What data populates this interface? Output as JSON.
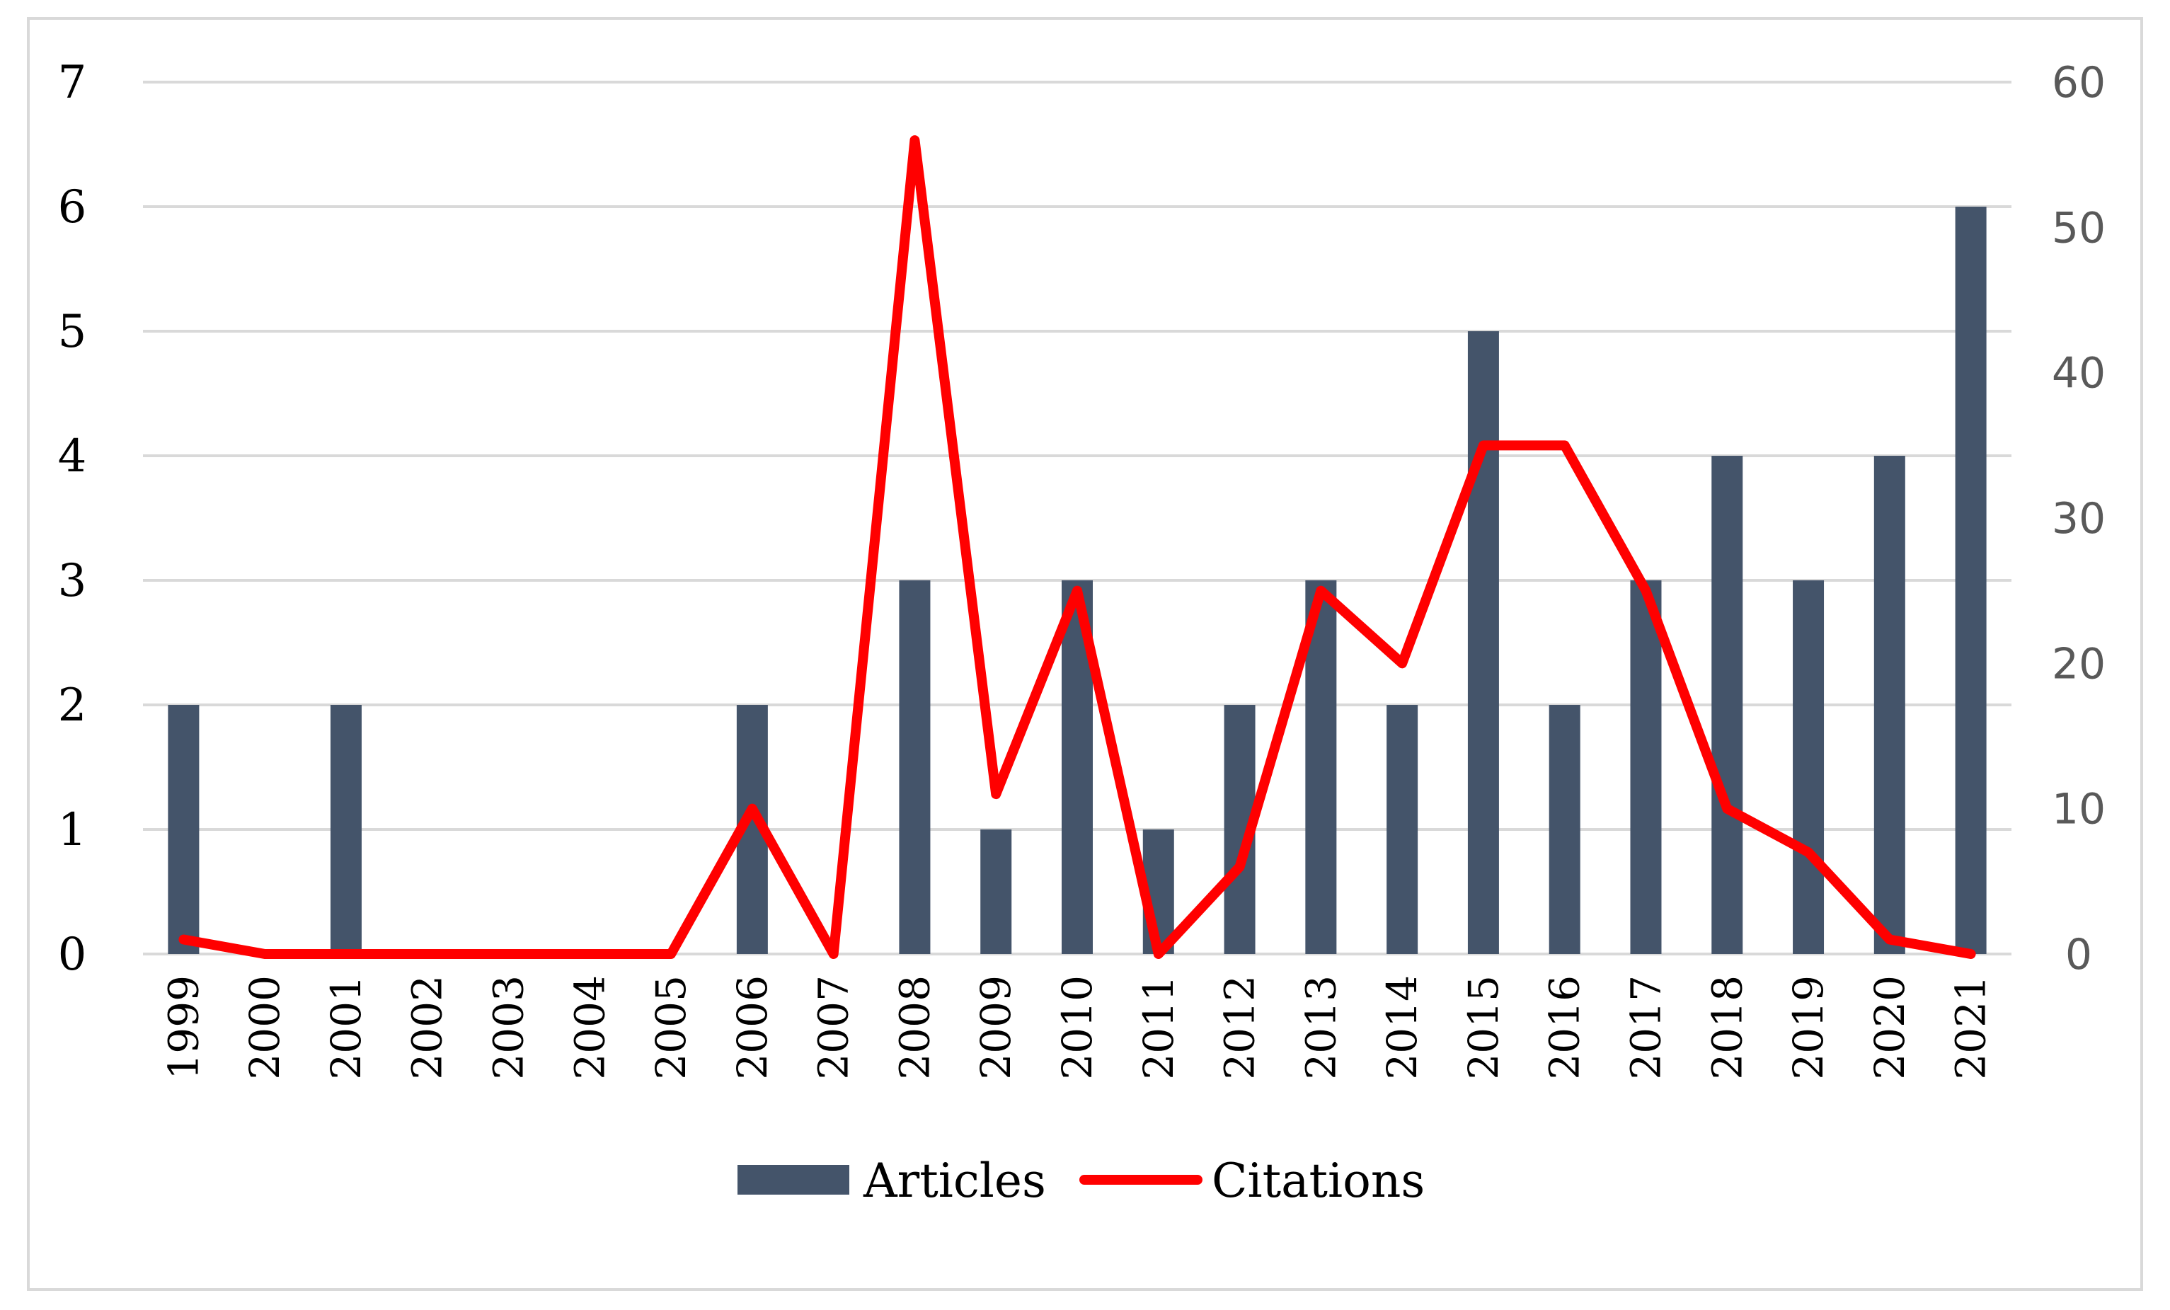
{
  "chart_data": {
    "type": "bar",
    "title": "",
    "xlabel": "",
    "ylabel": "",
    "y2label": "",
    "categories": [
      "1999",
      "2000",
      "2001",
      "2002",
      "2003",
      "2004",
      "2005",
      "2006",
      "2007",
      "2008",
      "2009",
      "2010",
      "2011",
      "2012",
      "2013",
      "2014",
      "2015",
      "2016",
      "2017",
      "2018",
      "2019",
      "2020",
      "2021"
    ],
    "series": [
      {
        "name": "Articles",
        "type": "bar",
        "axis": "left",
        "color": "#44546a",
        "values": [
          2,
          0,
          2,
          0,
          0,
          0,
          0,
          2,
          0,
          3,
          1,
          3,
          1,
          2,
          3,
          2,
          5,
          2,
          3,
          4,
          3,
          4,
          6
        ]
      },
      {
        "name": "Citations",
        "type": "line",
        "axis": "right",
        "color": "#ff0000",
        "values": [
          1,
          0,
          0,
          0,
          0,
          0,
          0,
          10,
          0,
          56,
          11,
          25,
          0,
          6,
          25,
          20,
          35,
          35,
          25,
          10,
          7,
          1,
          0
        ]
      }
    ],
    "ylim": [
      0,
      7
    ],
    "y_ticks": [
      "0",
      "1",
      "2",
      "3",
      "4",
      "5",
      "6",
      "7"
    ],
    "y2lim": [
      0,
      60
    ],
    "y2_ticks": [
      "0",
      "10",
      "20",
      "30",
      "40",
      "50",
      "60"
    ],
    "grid": true,
    "legend_position": "bottom"
  }
}
